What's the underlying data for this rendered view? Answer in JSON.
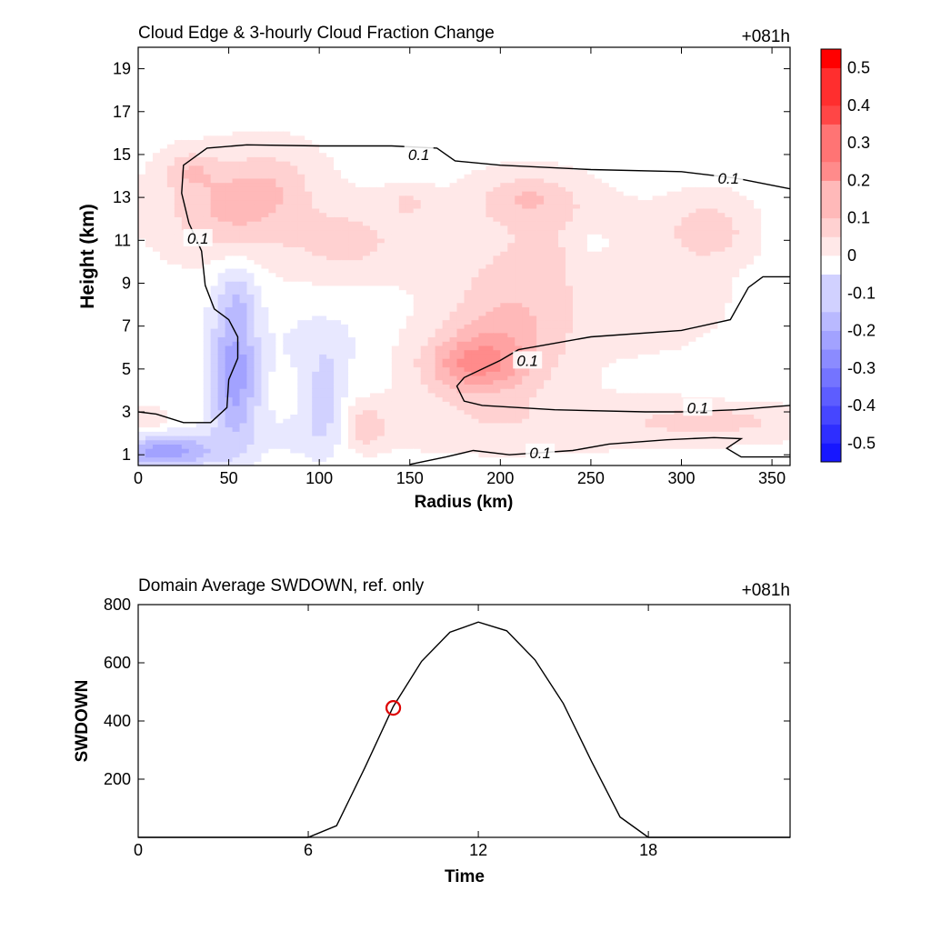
{
  "chart_data": [
    {
      "type": "heatmap",
      "title": "Cloud Edge & 3-hourly Cloud Fraction Change",
      "time_label": "+081h",
      "xlabel": "Radius (km)",
      "ylabel": "Height (km)",
      "xlim": [
        0,
        360
      ],
      "ylim": [
        0.5,
        20
      ],
      "xticks": [
        0,
        50,
        100,
        150,
        200,
        250,
        300,
        350
      ],
      "yticks": [
        1,
        3,
        5,
        7,
        9,
        11,
        13,
        15,
        17,
        19
      ],
      "colorbar": {
        "levels": [
          -0.55,
          -0.5,
          -0.45,
          -0.4,
          -0.35,
          -0.3,
          -0.25,
          -0.2,
          -0.15,
          -0.1,
          -0.05,
          0,
          0.05,
          0.1,
          0.15,
          0.2,
          0.25,
          0.3,
          0.35,
          0.4,
          0.45,
          0.5,
          0.55
        ],
        "tick_values": [
          0.5,
          0.4,
          0.3,
          0.2,
          0.1,
          0,
          -0.1,
          -0.2,
          -0.3,
          -0.4,
          -0.5
        ],
        "tick_labels": [
          "0.5",
          "0.4",
          "0.3",
          "0.2",
          "0.1",
          "0",
          "-0.1",
          "-0.2",
          "-0.3",
          "-0.4",
          "-0.5"
        ],
        "positive_color": "#ff0000",
        "negative_color": "#0000ff",
        "mid_color": "#ffffff"
      },
      "blobs": [
        {
          "r": 50,
          "z": 12.5,
          "rx": 25,
          "rz": 1.5,
          "v": 0.12
        },
        {
          "r": 28,
          "z": 14.3,
          "rx": 10,
          "rz": 0.6,
          "v": 0.08
        },
        {
          "r": 75,
          "z": 13.8,
          "rx": 18,
          "rz": 1.2,
          "v": 0.06
        },
        {
          "r": 185,
          "z": 5.2,
          "rx": 20,
          "rz": 1.0,
          "v": 0.18
        },
        {
          "r": 205,
          "z": 7.0,
          "rx": 25,
          "rz": 2.0,
          "v": 0.12
        },
        {
          "r": 230,
          "z": 11.0,
          "rx": 40,
          "rz": 1.5,
          "v": 0.05
        },
        {
          "r": 215,
          "z": 13.0,
          "rx": 20,
          "rz": 0.8,
          "v": 0.1
        },
        {
          "r": 115,
          "z": 11.0,
          "rx": 25,
          "rz": 1.2,
          "v": 0.08
        },
        {
          "r": 150,
          "z": 12.8,
          "rx": 10,
          "rz": 0.5,
          "v": 0.06
        },
        {
          "r": 315,
          "z": 11.5,
          "rx": 15,
          "rz": 1.0,
          "v": 0.1
        },
        {
          "r": 280,
          "z": 8.0,
          "rx": 30,
          "rz": 1.5,
          "v": 0.04
        },
        {
          "r": 205,
          "z": 2.5,
          "rx": 60,
          "rz": 0.9,
          "v": 0.05
        },
        {
          "r": 320,
          "z": 2.6,
          "rx": 35,
          "rz": 0.6,
          "v": 0.08
        },
        {
          "r": 125,
          "z": 2.3,
          "rx": 8,
          "rz": 0.7,
          "v": 0.1
        },
        {
          "r": 5,
          "z": 2.5,
          "rx": 8,
          "rz": 0.5,
          "v": 0.06
        },
        {
          "r": 53,
          "z": 4.8,
          "rx": 10,
          "rz": 2.4,
          "v": -0.22
        },
        {
          "r": 15,
          "z": 1.2,
          "rx": 20,
          "rz": 0.6,
          "v": -0.22
        },
        {
          "r": 100,
          "z": 6.2,
          "rx": 18,
          "rz": 1.2,
          "v": -0.06
        },
        {
          "r": 103,
          "z": 3.5,
          "rx": 8,
          "rz": 1.5,
          "v": -0.1
        },
        {
          "r": 90,
          "z": 2.0,
          "rx": 20,
          "rz": 1.0,
          "v": -0.05
        },
        {
          "r": 55,
          "z": 8.5,
          "rx": 8,
          "rz": 1.0,
          "v": -0.07
        },
        {
          "r": 252,
          "z": 10.9,
          "rx": 6,
          "rz": 0.4,
          "v": -0.06
        },
        {
          "r": 340,
          "z": 4.5,
          "rx": 20,
          "rz": 1.0,
          "v": -0.02
        }
      ],
      "contours": [
        {
          "level_label": "0.1",
          "points": [
            [
              360,
              13.4
            ],
            [
              330,
              13.9
            ],
            [
              300,
              14.2
            ],
            [
              250,
              14.3
            ],
            [
              200,
              14.5
            ],
            [
              175,
              14.7
            ],
            [
              165,
              15.3
            ],
            [
              140,
              15.4
            ],
            [
              100,
              15.4
            ],
            [
              60,
              15.45
            ],
            [
              38,
              15.3
            ],
            [
              25,
              14.5
            ],
            [
              24,
              13.2
            ],
            [
              28,
              11.8
            ],
            [
              35,
              10.5
            ],
            [
              37,
              8.9
            ],
            [
              42,
              7.8
            ],
            [
              50,
              7.3
            ],
            [
              55,
              6.5
            ],
            [
              55,
              5.5
            ],
            [
              50,
              4.5
            ],
            [
              49,
              3.2
            ],
            [
              40,
              2.5
            ],
            [
              25,
              2.5
            ],
            [
              10,
              2.9
            ],
            [
              0,
              3.0
            ]
          ],
          "label_at": [
            [
              155,
              15.0
            ],
            [
              326,
              13.9
            ],
            [
              33,
              11.1
            ]
          ]
        },
        {
          "level_label": "0.1",
          "points": [
            [
              360,
              9.3
            ],
            [
              345,
              9.3
            ],
            [
              337,
              8.8
            ],
            [
              327,
              7.3
            ],
            [
              300,
              6.8
            ],
            [
              250,
              6.5
            ],
            [
              210,
              5.9
            ],
            [
              200,
              5.4
            ],
            [
              180,
              4.6
            ],
            [
              176,
              4.2
            ],
            [
              180,
              3.5
            ],
            [
              190,
              3.3
            ],
            [
              230,
              3.1
            ],
            [
              280,
              3.0
            ],
            [
              300,
              3.0
            ],
            [
              330,
              3.1
            ],
            [
              360,
              3.3
            ]
          ],
          "label_at": [
            [
              215,
              5.4
            ],
            [
              309,
              3.2
            ]
          ]
        },
        {
          "level_label": "0.1",
          "points": [
            [
              150,
              0.55
            ],
            [
              170,
              0.9
            ],
            [
              185,
              1.2
            ],
            [
              205,
              1.0
            ],
            [
              240,
              1.2
            ],
            [
              260,
              1.5
            ],
            [
              292,
              1.7
            ],
            [
              318,
              1.8
            ],
            [
              333,
              1.75
            ],
            [
              325,
              1.3
            ],
            [
              333,
              0.9
            ],
            [
              360,
              0.9
            ]
          ],
          "label_at": [
            [
              222,
              1.1
            ]
          ]
        }
      ]
    },
    {
      "type": "line",
      "title": "Domain Average SWDOWN, ref. only",
      "time_label": "+081h",
      "xlabel": "Time",
      "ylabel": "SWDOWN",
      "xlim": [
        0,
        23
      ],
      "ylim": [
        0,
        800
      ],
      "xticks": [
        0,
        6,
        12,
        18
      ],
      "yticks": [
        200,
        400,
        600,
        800
      ],
      "x": [
        0,
        1,
        2,
        3,
        4,
        5,
        6,
        7,
        8,
        9,
        10,
        11,
        12,
        13,
        14,
        15,
        16,
        17,
        18,
        19,
        20,
        21,
        22,
        23
      ],
      "y": [
        0,
        0,
        0,
        0,
        0,
        0,
        0,
        40,
        240,
        450,
        605,
        705,
        740,
        710,
        610,
        460,
        260,
        70,
        0,
        0,
        0,
        0,
        0,
        0
      ],
      "marker": {
        "x": 9,
        "y": 445,
        "color": "#dd0000"
      }
    }
  ]
}
